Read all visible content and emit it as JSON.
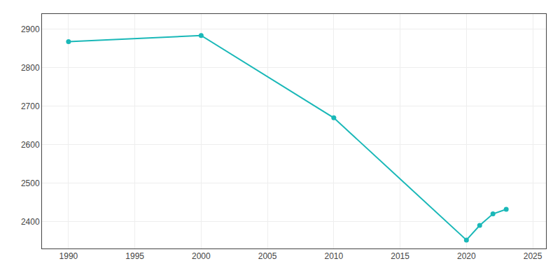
{
  "chart_data": {
    "type": "line",
    "x": [
      1990,
      2000,
      2010,
      2020,
      2021,
      2022,
      2023
    ],
    "values": [
      2868,
      2884,
      2670,
      2352,
      2390,
      2420,
      2432
    ],
    "color": "#1ab8b8",
    "marker": "circle",
    "line_style": "solid",
    "xlim": [
      1988,
      2026
    ],
    "ylim": [
      2330,
      2940
    ],
    "xticks": [
      1990,
      1995,
      2000,
      2005,
      2010,
      2015,
      2020,
      2025
    ],
    "yticks": [
      2400,
      2500,
      2600,
      2700,
      2800,
      2900
    ],
    "grid": true
  }
}
